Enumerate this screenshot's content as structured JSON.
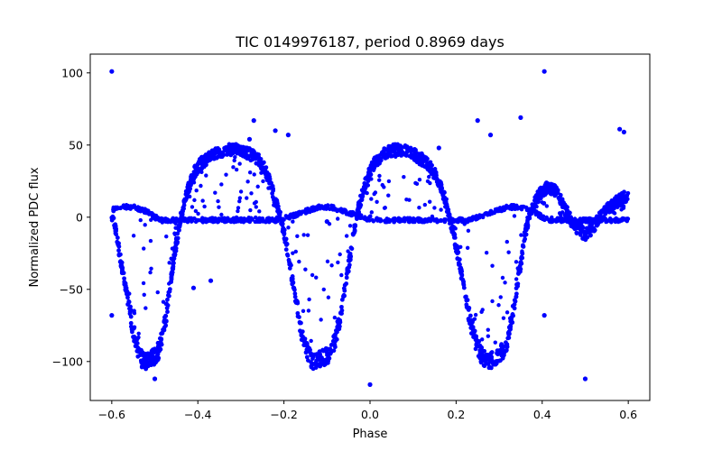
{
  "chart_data": {
    "type": "scatter",
    "title": "TIC 0149976187, period 0.8969 days",
    "xlabel": "Phase",
    "ylabel": "Normalized PDC flux",
    "xlim": [
      -0.65,
      0.65
    ],
    "ylim": [
      -127,
      113
    ],
    "xticks": [
      -0.6,
      -0.4,
      -0.2,
      0.0,
      0.2,
      0.4,
      0.6
    ],
    "xtick_labels": [
      "−0.6",
      "−0.4",
      "−0.2",
      "0.0",
      "0.2",
      "0.4",
      "0.6"
    ],
    "yticks": [
      -100,
      -50,
      0,
      50,
      100
    ],
    "ytick_labels": [
      "−100",
      "−50",
      "0",
      "50",
      "100"
    ],
    "grid": false,
    "legend": "none",
    "marker_color": "#0000ff",
    "period_days": 0.8969,
    "series": [
      {
        "x": [
          -0.6,
          -0.59,
          -0.58,
          -0.57,
          -0.56,
          -0.55,
          -0.54,
          -0.53,
          -0.52,
          -0.51,
          -0.5,
          -0.49,
          -0.48,
          -0.47,
          -0.46,
          -0.45,
          -0.44,
          -0.43,
          -0.42,
          -0.41,
          -0.4,
          -0.39,
          -0.38,
          -0.37,
          -0.36,
          -0.35,
          -0.34,
          -0.33,
          -0.32,
          -0.31,
          -0.3,
          -0.29,
          -0.28,
          -0.27,
          -0.26,
          -0.25,
          -0.24,
          -0.23,
          -0.22,
          -0.21,
          -0.2,
          -0.19,
          -0.18,
          -0.17,
          -0.16,
          -0.15,
          -0.14,
          -0.13,
          -0.12,
          -0.11,
          -0.1,
          -0.09,
          -0.08,
          -0.07,
          -0.06,
          -0.05,
          -0.04,
          -0.03,
          -0.02,
          -0.01,
          0.0,
          0.01,
          0.02,
          0.03,
          0.04,
          0.05,
          0.06,
          0.07,
          0.08,
          0.09,
          0.1,
          0.11,
          0.12,
          0.13,
          0.14,
          0.15,
          0.16,
          0.17,
          0.18,
          0.19,
          0.2,
          0.21,
          0.22,
          0.23,
          0.24,
          0.25,
          0.26,
          0.27,
          0.28,
          0.29,
          0.3,
          0.31,
          0.32,
          0.33,
          0.34,
          0.35,
          0.36,
          0.37,
          0.38,
          0.39,
          0.4,
          0.41,
          0.42,
          0.43,
          0.44,
          0.45,
          0.46,
          0.47,
          0.48,
          0.49,
          0.5,
          0.51,
          0.52,
          0.53,
          0.54,
          0.55,
          0.56,
          0.57,
          0.58,
          0.59,
          0.6
        ],
        "y": [
          0,
          -10,
          -28,
          -45,
          -62,
          -78,
          -90,
          -98,
          -100,
          -98,
          -96,
          -92,
          -80,
          -60,
          -38,
          -18,
          0,
          12,
          22,
          30,
          35,
          38,
          40,
          42,
          44,
          45,
          46,
          47,
          47,
          47,
          46,
          45,
          44,
          42,
          40,
          36,
          30,
          22,
          12,
          2,
          -10,
          -26,
          -44,
          -62,
          -78,
          -90,
          -97,
          -100,
          -99,
          -98,
          -96,
          -92,
          -84,
          -70,
          -52,
          -34,
          -16,
          2,
          14,
          24,
          32,
          37,
          40,
          43,
          45,
          46,
          47,
          47,
          46,
          45,
          44,
          42,
          40,
          38,
          35,
          30,
          24,
          16,
          6,
          -6,
          -20,
          -36,
          -52,
          -68,
          -80,
          -90,
          -96,
          -99,
          -100,
          -98,
          -96,
          -92,
          -84,
          -70,
          -52,
          -32,
          -12,
          0,
          8,
          14,
          18,
          20,
          20,
          18,
          14,
          8,
          2,
          -4,
          -8,
          -10,
          -12,
          -10,
          -6,
          -2,
          2,
          6,
          8,
          10,
          12,
          14,
          15
        ],
        "y2": [
          5,
          6,
          7,
          7,
          7,
          7,
          6,
          5,
          4,
          2,
          0,
          -1,
          -2,
          -2,
          -2,
          -2,
          -2,
          -2,
          -2,
          -2,
          -2,
          -2,
          -2,
          -2,
          -2,
          -2,
          -2,
          -2,
          -2,
          -2,
          -2,
          -2,
          -2,
          -2,
          -2,
          -2,
          -2,
          -2,
          -2,
          -2,
          -1,
          0,
          1,
          2,
          3,
          4,
          5,
          6,
          7,
          7,
          7,
          7,
          6,
          5,
          4,
          3,
          2,
          1,
          0,
          -1,
          -1,
          -2,
          -2,
          -2,
          -2,
          -2,
          -2,
          -2,
          -2,
          -2,
          -2,
          -2,
          -2,
          -2,
          -2,
          -2,
          -2,
          -2,
          -2,
          -2,
          -2,
          -2,
          -2,
          -2,
          -1,
          0,
          1,
          2,
          3,
          4,
          5,
          6,
          7,
          7,
          7,
          7,
          6,
          5,
          4,
          2,
          0,
          -1,
          -2,
          -2,
          -2,
          -2,
          -2,
          -2,
          -2,
          -2,
          -2,
          -2,
          -2,
          -2,
          -2,
          -2,
          -2,
          -2,
          -2,
          -2,
          -2
        ]
      }
    ],
    "outliers": [
      [
        -0.6,
        101
      ],
      [
        0.405,
        101
      ],
      [
        -0.6,
        -68
      ],
      [
        0.405,
        -68
      ],
      [
        -0.5,
        -112
      ],
      [
        0.0,
        -116
      ],
      [
        0.5,
        -112
      ],
      [
        -0.27,
        67
      ],
      [
        0.25,
        67
      ],
      [
        0.35,
        69
      ],
      [
        0.59,
        59
      ],
      [
        0.58,
        61
      ],
      [
        -0.37,
        -44
      ],
      [
        -0.41,
        -49
      ],
      [
        -0.19,
        57
      ],
      [
        0.12,
        44
      ],
      [
        -0.28,
        54
      ],
      [
        0.16,
        48
      ],
      [
        -0.22,
        60
      ],
      [
        0.28,
        57
      ],
      [
        -0.1,
        -3
      ],
      [
        0.1,
        -3
      ]
    ]
  }
}
